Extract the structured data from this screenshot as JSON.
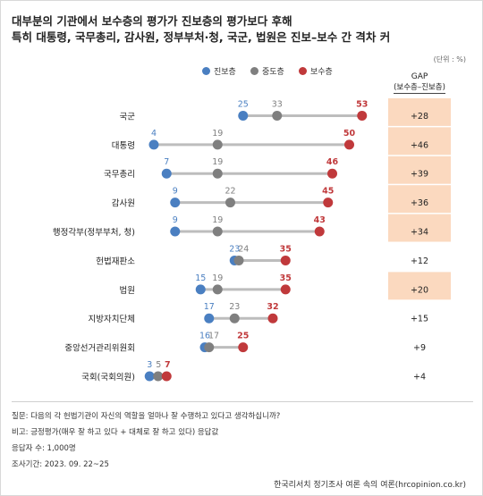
{
  "title_line1": "대부분의 기관에서 보수층의 평가가 진보층의 평가보다 후해",
  "title_line2": "특히 대통령, 국무총리, 감사원, 정부부처·청, 국군, 법원은 진보–보수 간 격차 커",
  "unit": "(단위 : %)",
  "legend": [
    {
      "name": "진보층",
      "color": "#4a7fc1"
    },
    {
      "name": "중도층",
      "color": "#7f7f7f"
    },
    {
      "name": "보수층",
      "color": "#c0393b"
    }
  ],
  "gap_header": {
    "label": "GAP",
    "sub": "(보수층–진보층)"
  },
  "chart_data": {
    "type": "scatter",
    "title": "대부분의 기관에서 보수층의 평가가 진보층의 평가보다 후해",
    "series": [
      {
        "name": "진보층",
        "color": "#4a7fc1",
        "values": [
          25,
          4,
          7,
          9,
          9,
          23,
          15,
          17,
          16,
          3
        ]
      },
      {
        "name": "중도층",
        "color": "#7f7f7f",
        "values": [
          33,
          19,
          19,
          22,
          19,
          24,
          19,
          23,
          17,
          5
        ]
      },
      {
        "name": "보수층",
        "color": "#c0393b",
        "values": [
          53,
          50,
          46,
          45,
          43,
          35,
          35,
          32,
          25,
          7
        ]
      }
    ],
    "categories": [
      "국군",
      "대통령",
      "국무총리",
      "감사원",
      "행정각부(정부부처, 청)",
      "헌법재판소",
      "법원",
      "지방자치단체",
      "중앙선거관리위원회",
      "국회(국회의원)"
    ],
    "gap": [
      "+28",
      "+46",
      "+39",
      "+36",
      "+34",
      "+12",
      "+20",
      "+15",
      "+9",
      "+4"
    ],
    "gap_highlight": [
      true,
      true,
      true,
      true,
      true,
      false,
      true,
      false,
      false,
      false
    ],
    "highlight_color": "#fbd9bf",
    "xlim": [
      0,
      55
    ]
  },
  "footnotes": {
    "question": "질문:  다음의 각 헌법기관이 자신의 역할을 얼마나 잘 수행하고 있다고 생각하십니까?",
    "note": "비고: 긍정평가(매우 잘 하고 있다 + 대체로 잘 하고 있다) 응답값",
    "sample": "응답자 수: 1,000명",
    "period": "조사기간: 2023. 09. 22~25"
  },
  "source": "한국리서치 정기조사 여론 속의 여론(hrcopinion.co.kr)"
}
